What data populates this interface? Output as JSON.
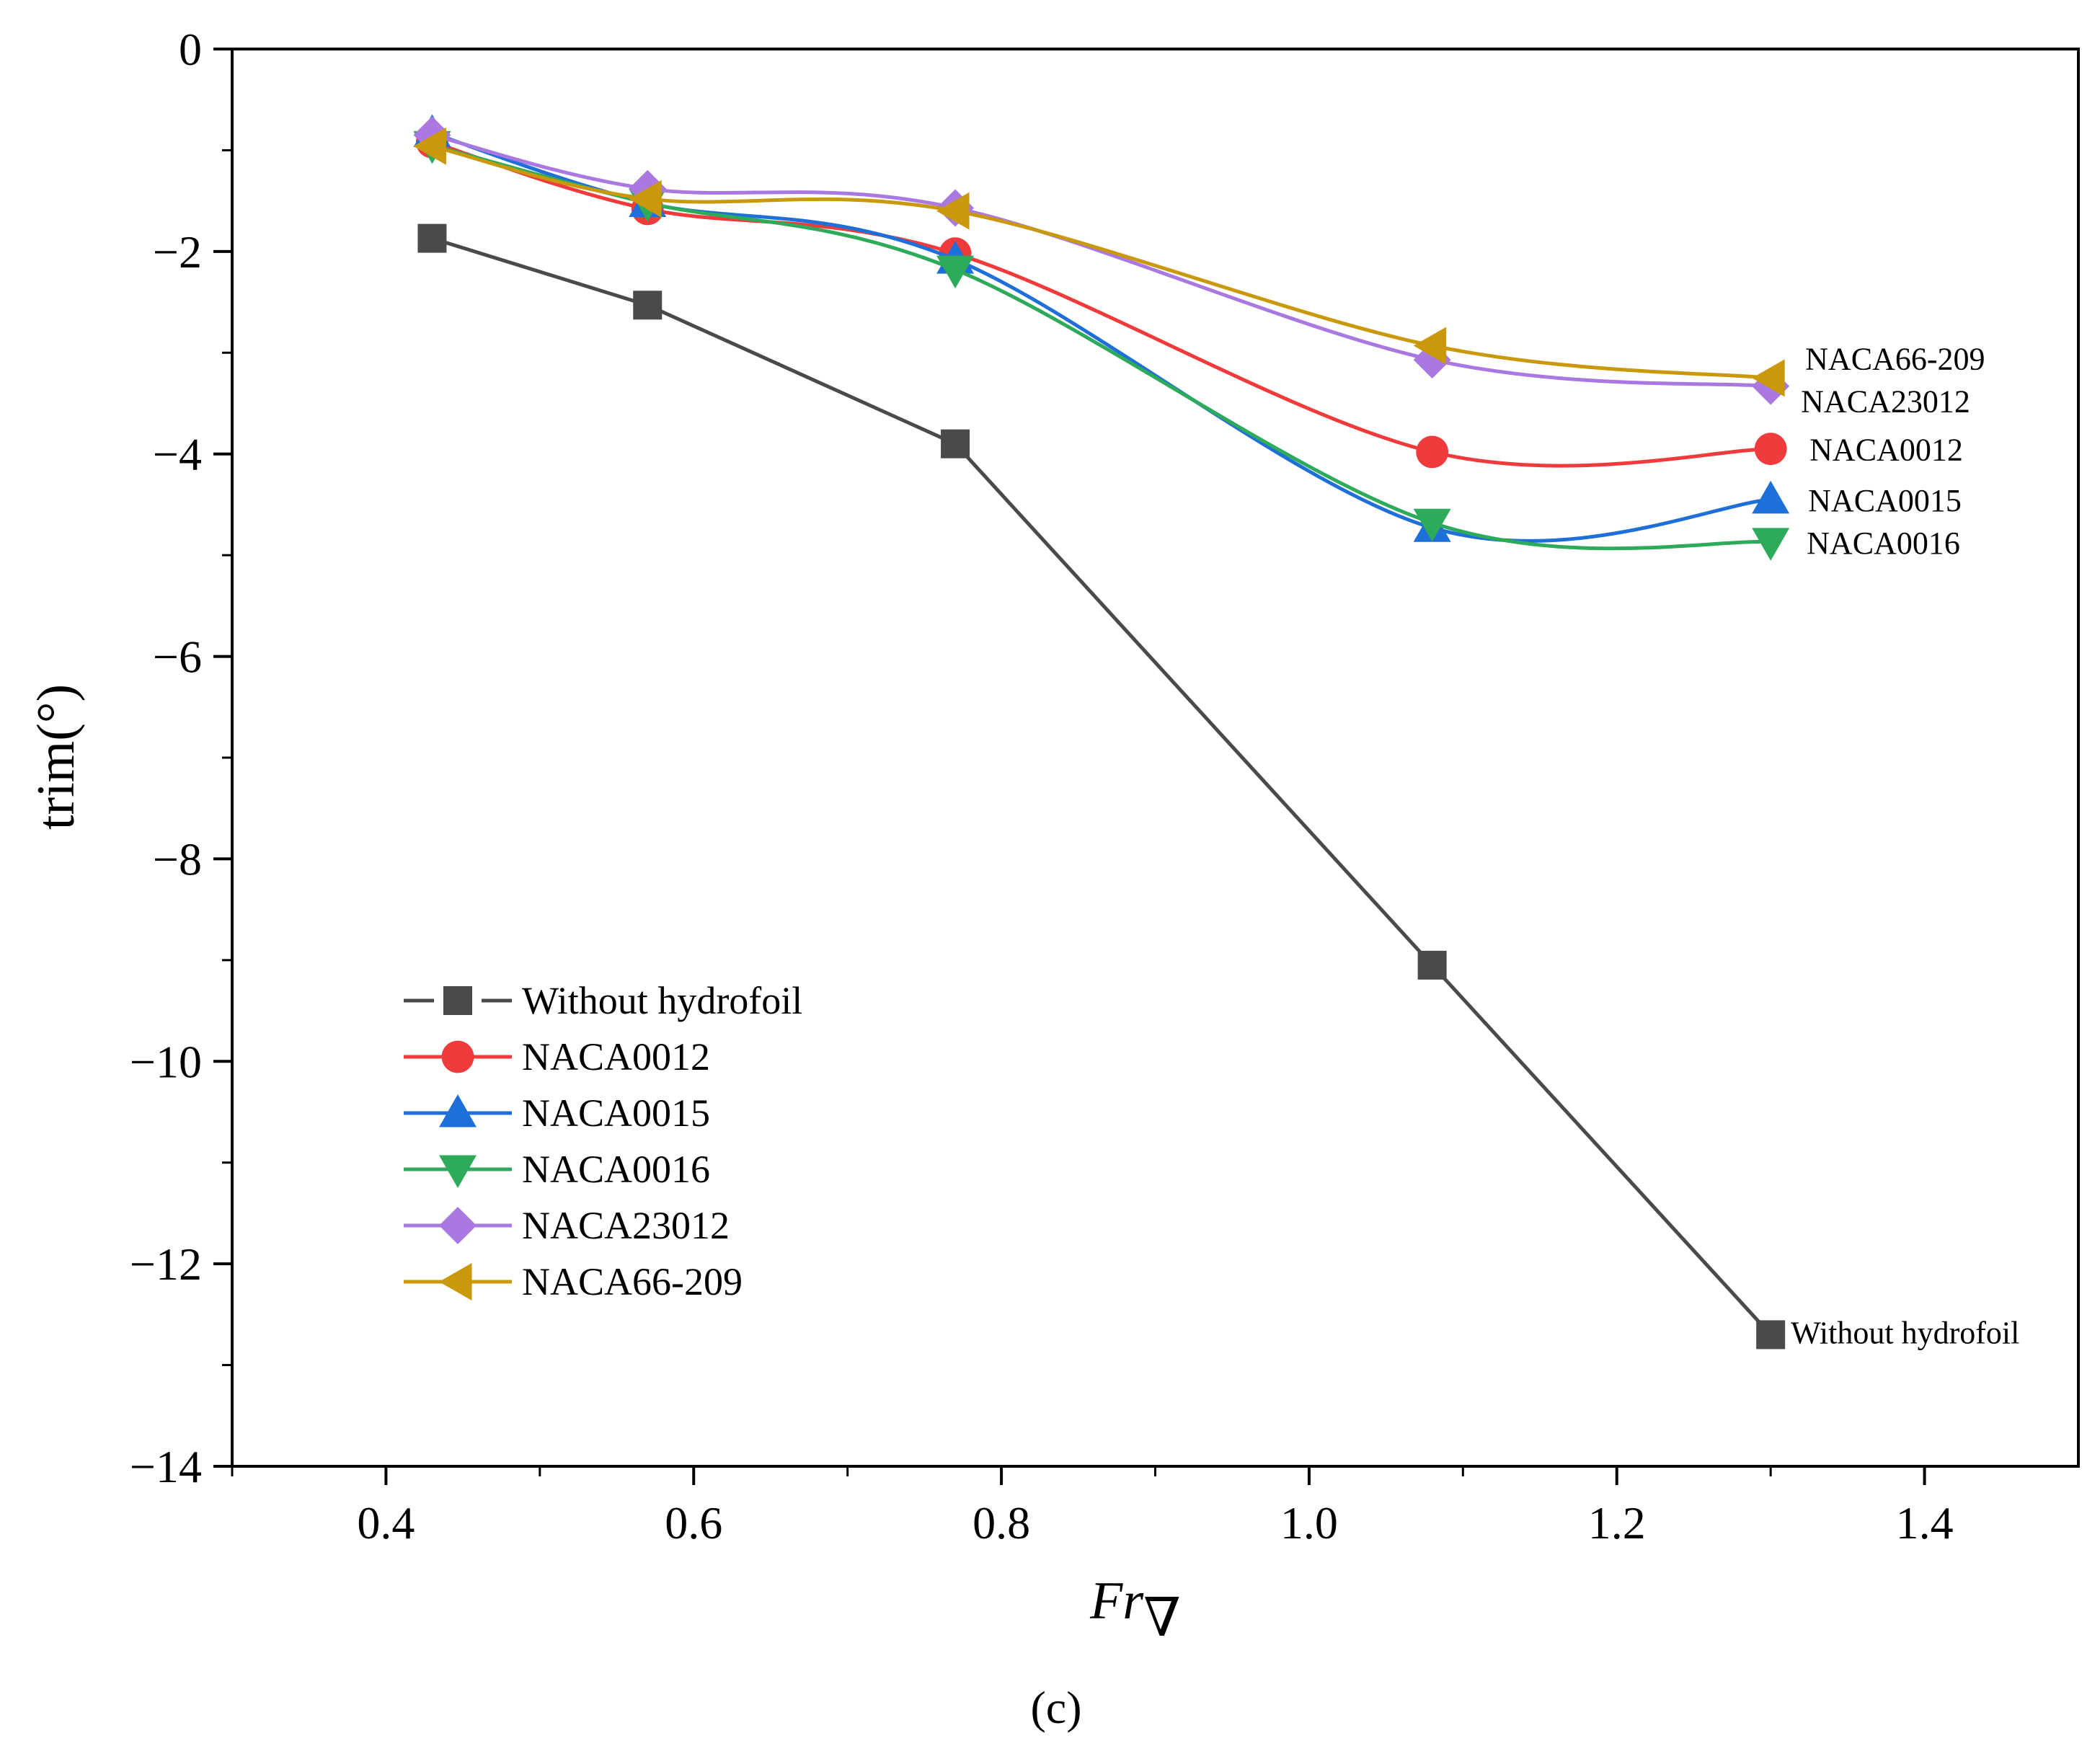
{
  "chart_data": {
    "type": "line",
    "title": "",
    "xlabel": "Fr",
    "xlabel_subscript": "∇",
    "ylabel": "trim(°)",
    "caption": "(c)",
    "xlim": [
      0.3,
      1.5
    ],
    "ylim": [
      -14,
      0
    ],
    "xticks": [
      0.4,
      0.6,
      0.8,
      1.0,
      1.2,
      1.4
    ],
    "xtick_labels": [
      "0.4",
      "0.6",
      "0.8",
      "1.0",
      "1.2",
      "1.4"
    ],
    "yticks": [
      0,
      -2,
      -4,
      -6,
      -8,
      -10,
      -12,
      -14
    ],
    "ytick_labels": [
      "0",
      "−2",
      "−4",
      "−6",
      "−8",
      "−10",
      "−12",
      "−14"
    ],
    "x": [
      0.43,
      0.57,
      0.77,
      1.08,
      1.3
    ],
    "legend_position": "lower-left",
    "series": [
      {
        "name": "Without hydrofoil",
        "values": [
          -1.87,
          -2.53,
          -3.9,
          -9.05,
          -12.7
        ],
        "color": "#4a4a4a",
        "marker": "square",
        "end_label": "Without hydrofoil"
      },
      {
        "name": "NACA0012",
        "values": [
          -0.92,
          -1.58,
          -2.02,
          -3.98,
          -3.95
        ],
        "color": "#ef3b3b",
        "marker": "circle",
        "end_label": "NACA0012"
      },
      {
        "name": "NACA0015",
        "values": [
          -0.83,
          -1.52,
          -2.08,
          -4.73,
          -4.45
        ],
        "color": "#1f6fd8",
        "marker": "triangle-up",
        "end_label": "NACA0015"
      },
      {
        "name": "NACA0016",
        "values": [
          -0.95,
          -1.52,
          -2.18,
          -4.68,
          -4.87
        ],
        "color": "#2daa5a",
        "marker": "triangle-down",
        "end_label": "NACA0016"
      },
      {
        "name": "NACA23012",
        "values": [
          -0.85,
          -1.38,
          -1.57,
          -3.07,
          -3.33
        ],
        "color": "#a978e0",
        "marker": "diamond",
        "end_label": "NACA23012"
      },
      {
        "name": "NACA66-209",
        "values": [
          -0.96,
          -1.48,
          -1.6,
          -2.93,
          -3.25
        ],
        "color": "#c9980c",
        "marker": "triangle-left",
        "end_label": "NACA66-209"
      }
    ]
  }
}
